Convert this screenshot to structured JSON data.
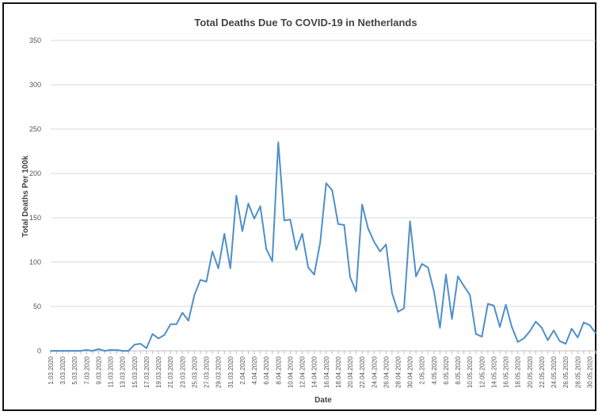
{
  "chart_data": {
    "type": "line",
    "title": "Total Deaths Due To COVID-19 in Netherlands",
    "xlabel": "Date",
    "ylabel": "Total Deaths Per 100k",
    "ylim": [
      0,
      350
    ],
    "yticks": [
      0,
      50,
      100,
      150,
      200,
      250,
      300,
      350
    ],
    "grid": "horizontal",
    "legend": "none",
    "color": "#4f8fc9",
    "x": [
      "1.03.2020",
      "2.03.2020",
      "3.03.2020",
      "4.03.2020",
      "5.03.2020",
      "6.03.2020",
      "7.03.2020",
      "8.03.2020",
      "9.03.2020",
      "10.03.2020",
      "11.03.2020",
      "12.03.2020",
      "13.03.2020",
      "14.03.2020",
      "15.03.2020",
      "16.03.2020",
      "17.03.2020",
      "18.03.2020",
      "19.03.2020",
      "20.03.2020",
      "21.03.2020",
      "22.03.2020",
      "23.03.2020",
      "24.03.2020",
      "25.03.2020",
      "26.03.2020",
      "27.03.2020",
      "28.03.2020",
      "29.03.2020",
      "30.03.2020",
      "31.03.2020",
      "1.04.2020",
      "2.04.2020",
      "3.04.2020",
      "4.04.2020",
      "5.04.2020",
      "6.04.2020",
      "7.04.2020",
      "8.04.2020",
      "9.04.2020",
      "10.04.2020",
      "11.04.2020",
      "12.04.2020",
      "13.04.2020",
      "14.04.2020",
      "15.04.2020",
      "16.04.2020",
      "17.04.2020",
      "18.04.2020",
      "19.04.2020",
      "20.04.2020",
      "21.04.2020",
      "22.04.2020",
      "23.04.2020",
      "24.04.2020",
      "25.04.2020",
      "26.04.2020",
      "27.04.2020",
      "28.04.2020",
      "29.04.2020",
      "30.04.2020",
      "1.05.2020",
      "2.05.2020",
      "3.05.2020",
      "4.05.2020",
      "5.05.2020",
      "6.05.2020",
      "7.05.2020",
      "8.05.2020",
      "9.05.2020",
      "10.05.2020",
      "11.05.2020",
      "12.05.2020",
      "13.05.2020",
      "14.05.2020",
      "15.05.2020",
      "16.05.2020",
      "17.05.2020",
      "18.05.2020",
      "19.05.2020",
      "20.05.2020",
      "21.05.2020",
      "22.05.2020",
      "23.05.2020",
      "24.05.2020",
      "25.05.2020",
      "26.05.2020",
      "27.05.2020",
      "28.05.2020",
      "29.05.2020",
      "30.05.2020",
      "31.05.2020"
    ],
    "xtick_labels": [
      "1.03.2020",
      "3.03.2020",
      "5.03.2020",
      "7.03.2020",
      "9.03.2020",
      "11.03.2020",
      "13.03.2020",
      "15.03.2020",
      "17.03.2020",
      "19.03.2020",
      "21.03.2020",
      "23.03.2020",
      "25.03.2020",
      "27.03.2020",
      "29.03.2020",
      "31.03.2020",
      "2.04.2020",
      "4.04.2020",
      "6.04.2020",
      "8.04.2020",
      "10.04.2020",
      "12.04.2020",
      "14.04.2020",
      "16.04.2020",
      "18.04.2020",
      "20.04.2020",
      "22.04.2020",
      "24.04.2020",
      "26.04.2020",
      "28.04.2020",
      "30.04.2020",
      "2.05.2020",
      "4.05.2020",
      "6.05.2020",
      "8.05.2020",
      "10.05.2020",
      "12.05.2020",
      "14.05.2020",
      "16.05.2020",
      "18.05.2020",
      "20.05.2020",
      "22.05.2020",
      "24.05.2020",
      "26.05.2020",
      "28.05.2020",
      "30.05.2020"
    ],
    "series": [
      {
        "values": [
          0,
          0,
          0,
          0,
          0,
          0,
          1,
          0,
          2,
          0,
          1,
          1,
          0,
          0,
          7,
          8,
          3,
          19,
          14,
          18,
          30,
          30,
          43,
          34,
          63,
          80,
          78,
          112,
          93,
          132,
          93,
          175,
          135,
          166,
          149,
          163,
          115,
          101,
          235,
          147,
          148,
          114,
          132,
          94,
          86,
          122,
          189,
          181,
          143,
          142,
          83,
          67,
          165,
          138,
          123,
          112,
          120,
          65,
          44,
          48,
          146,
          84,
          98,
          94,
          67,
          26,
          86,
          36,
          84,
          73,
          63,
          19,
          16,
          53,
          51,
          27,
          52,
          27,
          10,
          14,
          22,
          33,
          26,
          12,
          23,
          11,
          8,
          25,
          15,
          32,
          29,
          20
        ]
      }
    ]
  }
}
